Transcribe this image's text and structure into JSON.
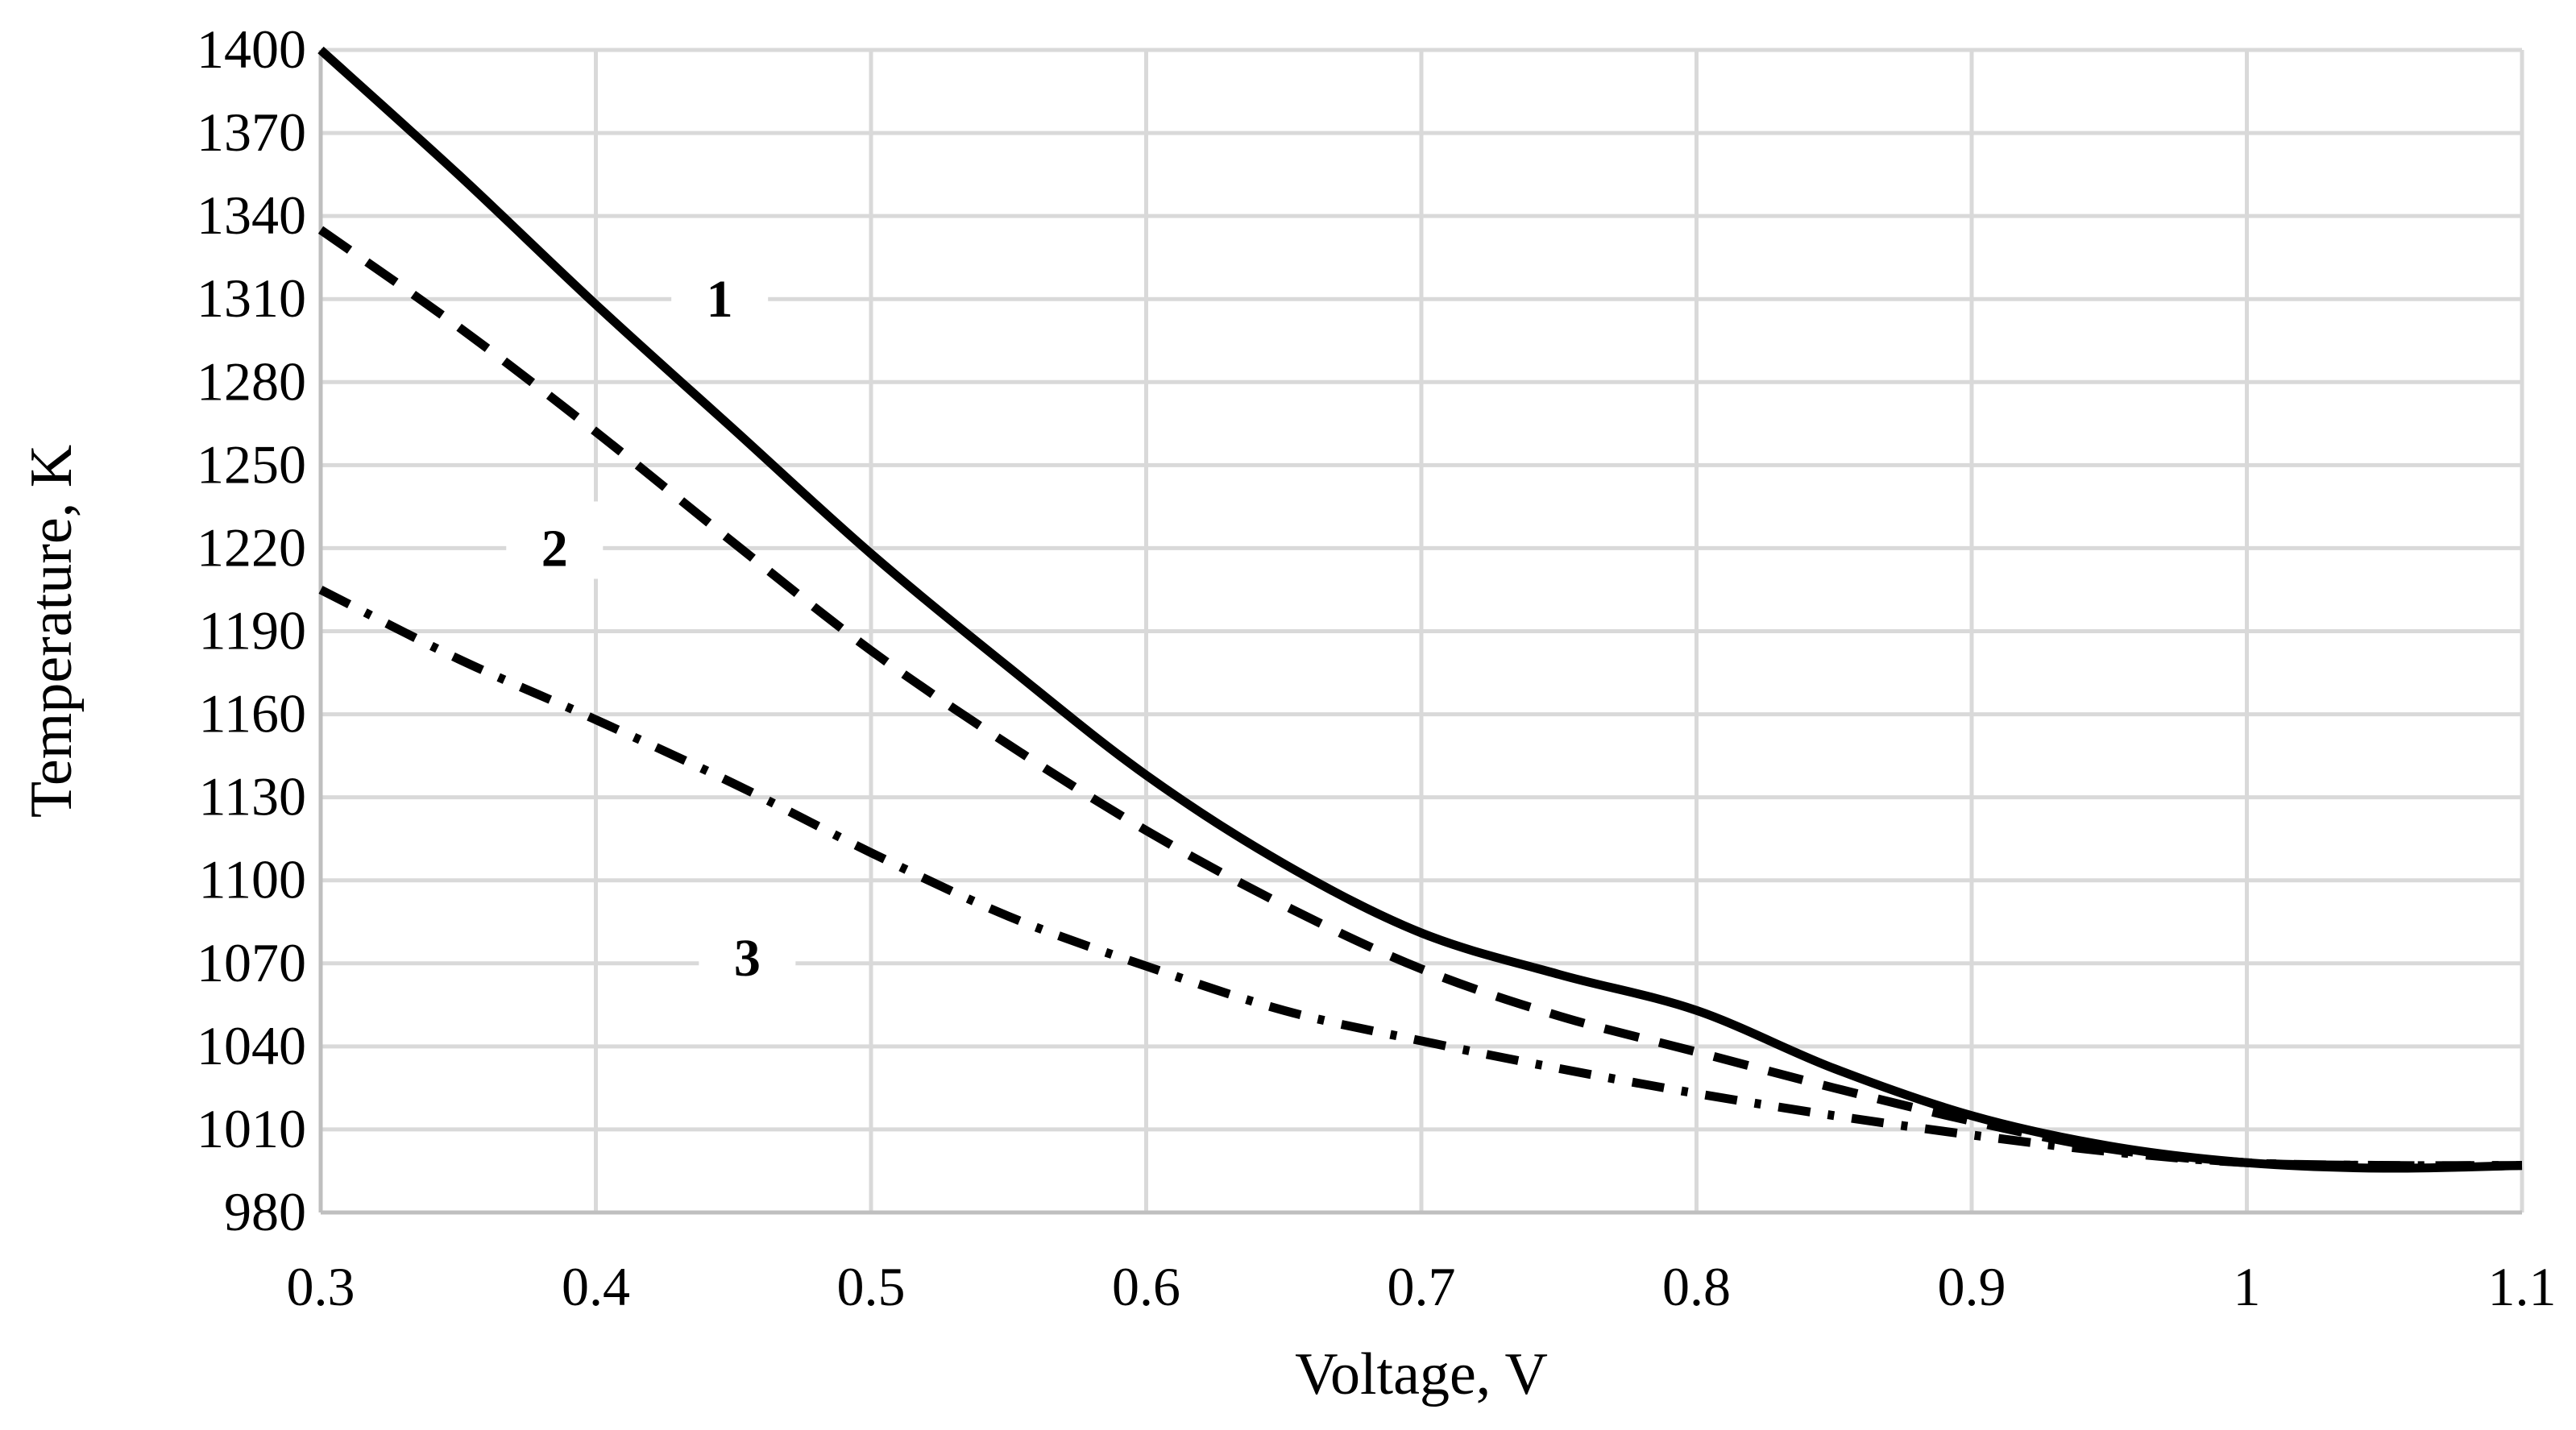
{
  "chart_data": {
    "type": "line",
    "title": "",
    "xlabel": "Voltage, V",
    "ylabel": "Temperature, K",
    "xlim": [
      0.3,
      1.1
    ],
    "ylim": [
      980,
      1400
    ],
    "xticks": [
      0.3,
      0.4,
      0.5,
      0.6,
      0.7,
      0.8,
      0.9,
      1.0,
      1.1
    ],
    "xtick_labels": [
      "0.3",
      "0.4",
      "0.5",
      "0.6",
      "0.7",
      "0.8",
      "0.9",
      "1",
      "1.1"
    ],
    "yticks": [
      980,
      1010,
      1040,
      1070,
      1100,
      1130,
      1160,
      1190,
      1220,
      1250,
      1280,
      1310,
      1340,
      1370,
      1400
    ],
    "grid": true,
    "legend": "none",
    "series": [
      {
        "name": "1",
        "style": "solid",
        "label_at": [
          0.445,
          1310
        ],
        "x": [
          0.3,
          0.35,
          0.4,
          0.45,
          0.5,
          0.55,
          0.6,
          0.65,
          0.7,
          0.75,
          0.8,
          0.85,
          0.9,
          0.95,
          1.0,
          1.05,
          1.1
        ],
        "y": [
          1400,
          1355,
          1308,
          1263,
          1218,
          1177,
          1138,
          1106,
          1081,
          1066,
          1053,
          1032,
          1015,
          1004,
          998,
          996,
          997
        ]
      },
      {
        "name": "2",
        "style": "dashed",
        "label_at": [
          0.385,
          1220
        ],
        "x": [
          0.3,
          0.35,
          0.4,
          0.45,
          0.5,
          0.55,
          0.6,
          0.65,
          0.7,
          0.75,
          0.8,
          0.85,
          0.9,
          0.95,
          1.0,
          1.05,
          1.1
        ],
        "y": [
          1335,
          1300,
          1262,
          1222,
          1183,
          1149,
          1118,
          1091,
          1068,
          1051,
          1038,
          1025,
          1013,
          1003,
          998,
          997,
          997
        ]
      },
      {
        "name": "3",
        "style": "dashdot",
        "label_at": [
          0.455,
          1072
        ],
        "x": [
          0.3,
          0.35,
          0.4,
          0.45,
          0.5,
          0.55,
          0.6,
          0.65,
          0.7,
          0.75,
          0.8,
          0.85,
          0.9,
          0.95,
          1.0,
          1.05,
          1.1
        ],
        "y": [
          1205,
          1180,
          1158,
          1135,
          1110,
          1087,
          1069,
          1053,
          1042,
          1032,
          1023,
          1015,
          1008,
          1002,
          998,
          997,
          997
        ]
      }
    ]
  }
}
